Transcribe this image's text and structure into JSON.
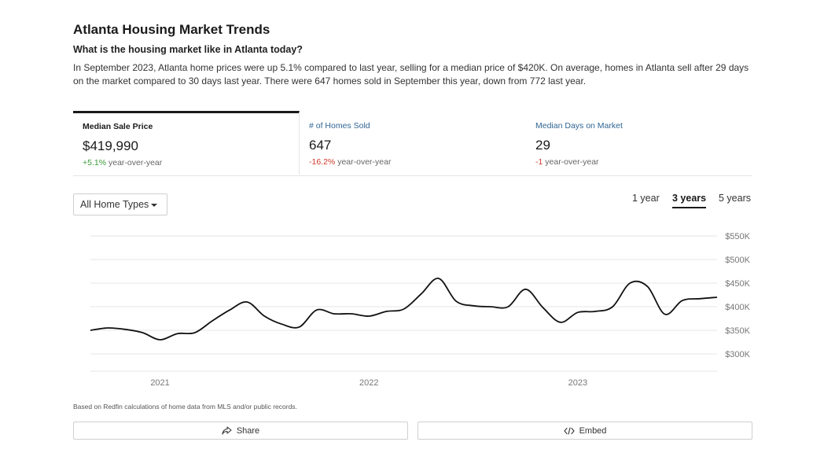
{
  "header": {
    "title": "Atlanta Housing Market Trends",
    "subtitle": "What is the housing market like in Atlanta today?",
    "summary": "In September 2023, Atlanta home prices were up 5.1% compared to last year, selling for a median price of $420K. On average, homes in Atlanta sell after 29 days on the market compared to 30 days last year. There were 647 homes sold in September this year, down from 772 last year."
  },
  "tabs": [
    {
      "label": "Median Sale Price",
      "value": "$419,990",
      "change": "+5.1%",
      "change_suffix": " year-over-year",
      "trend": "positive"
    },
    {
      "label": "# of Homes Sold",
      "value": "647",
      "change": "-16.2%",
      "change_suffix": " year-over-year",
      "trend": "negative"
    },
    {
      "label": "Median Days on Market",
      "value": "29",
      "change": "-1",
      "change_suffix": " year-over-year",
      "trend": "negative"
    }
  ],
  "controls": {
    "home_type": "All Home Types",
    "ranges": [
      "1 year",
      "3 years",
      "5 years"
    ],
    "selected_range": "3 years"
  },
  "colors": {
    "line": "#111111",
    "positive": "#3a9a3a",
    "negative": "#d0392b",
    "link": "#2f6593"
  },
  "chart_data": {
    "type": "line",
    "title": "",
    "xlabel": "",
    "ylabel": "",
    "ylim": [
      300000,
      550000
    ],
    "xlim": [
      "2020-09",
      "2023-09"
    ],
    "y_ticks": [
      300000,
      350000,
      400000,
      450000,
      500000,
      550000
    ],
    "y_tick_labels": [
      "$300K",
      "$350K",
      "$400K",
      "$450K",
      "$500K",
      "$550K"
    ],
    "x_ticks": [
      "2021-01",
      "2022-01",
      "2023-01"
    ],
    "x_tick_labels": [
      "2021",
      "2022",
      "2023"
    ],
    "grid": true,
    "series": [
      {
        "name": "",
        "x": [
          "2020-09",
          "2020-10",
          "2020-11",
          "2020-12",
          "2021-01",
          "2021-02",
          "2021-03",
          "2021-04",
          "2021-05",
          "2021-06",
          "2021-07",
          "2021-08",
          "2021-09",
          "2021-10",
          "2021-11",
          "2021-12",
          "2022-01",
          "2022-02",
          "2022-03",
          "2022-04",
          "2022-05",
          "2022-06",
          "2022-07",
          "2022-08",
          "2022-09",
          "2022-10",
          "2022-11",
          "2022-12",
          "2023-01",
          "2023-02",
          "2023-03",
          "2023-04",
          "2023-05",
          "2023-06",
          "2023-07",
          "2023-08",
          "2023-09"
        ],
        "y": [
          350000,
          355000,
          352000,
          345000,
          330000,
          343000,
          345000,
          370000,
          393000,
          410000,
          380000,
          363000,
          357000,
          393000,
          385000,
          385000,
          380000,
          390000,
          395000,
          427000,
          460000,
          412000,
          402000,
          400000,
          400000,
          437000,
          398000,
          367000,
          388000,
          390000,
          400000,
          450000,
          443000,
          384000,
          413000,
          417000,
          419990
        ]
      }
    ]
  },
  "footer": {
    "note": "Based on Redfin calculations of home data from MLS and/or public records.",
    "share_label": "Share",
    "embed_label": "Embed"
  }
}
